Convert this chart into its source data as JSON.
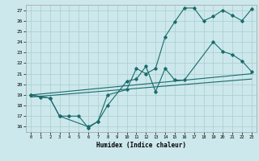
{
  "xlabel": "Humidex (Indice chaleur)",
  "bg_color": "#cce8ec",
  "line_color": "#1a6b6b",
  "grid_color": "#aacccc",
  "spine_color": "#aaaaaa",
  "xlim": [
    -0.5,
    23.5
  ],
  "ylim": [
    15.5,
    27.5
  ],
  "yticks": [
    16,
    17,
    18,
    19,
    20,
    21,
    22,
    23,
    24,
    25,
    26,
    27
  ],
  "xticks": [
    0,
    1,
    2,
    3,
    4,
    5,
    6,
    7,
    8,
    9,
    10,
    11,
    12,
    13,
    14,
    15,
    16,
    17,
    18,
    19,
    20,
    21,
    22,
    23
  ],
  "line1_x": [
    0,
    1,
    2,
    3,
    4,
    5,
    6,
    7,
    8,
    10,
    11,
    12,
    13,
    14,
    15,
    16,
    17,
    18,
    19,
    20,
    21,
    22,
    23
  ],
  "line1_y": [
    19.0,
    18.8,
    18.7,
    17.0,
    17.0,
    17.0,
    15.9,
    16.5,
    19.0,
    19.5,
    21.5,
    21.0,
    21.5,
    24.5,
    25.9,
    27.2,
    27.2,
    26.0,
    26.4,
    27.0,
    26.5,
    26.0,
    27.1
  ],
  "line2_x": [
    0,
    2,
    3,
    6,
    7,
    8,
    10,
    11,
    12,
    13,
    14,
    15,
    16,
    19,
    20,
    21,
    22,
    23
  ],
  "line2_y": [
    19.0,
    18.7,
    17.0,
    16.0,
    16.5,
    18.0,
    20.3,
    20.5,
    21.7,
    19.3,
    21.5,
    20.4,
    20.4,
    24.0,
    23.1,
    22.8,
    22.2,
    21.2
  ],
  "line3_x": [
    0,
    23
  ],
  "line3_y": [
    19.0,
    21.0
  ],
  "line4_x": [
    0,
    23
  ],
  "line4_y": [
    18.8,
    20.5
  ]
}
